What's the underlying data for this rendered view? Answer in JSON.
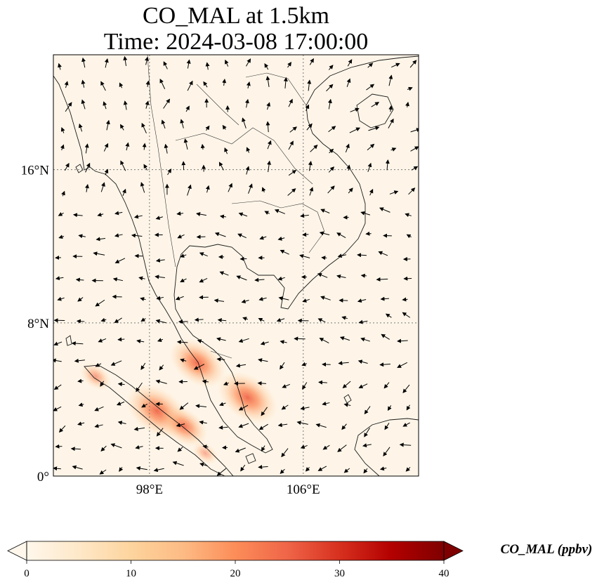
{
  "title": {
    "line1": "CO_MAL at 1.5km",
    "line2": "Time: 2024-03-08 17:00:00"
  },
  "map": {
    "extent": {
      "lon_min": 93,
      "lon_max": 112,
      "lat_min": 0,
      "lat_max": 22
    },
    "lon_ticks": [
      {
        "value": 98,
        "label": "98°E"
      },
      {
        "value": 106,
        "label": "106°E"
      }
    ],
    "lat_ticks": [
      {
        "value": 16,
        "label": "16°N"
      },
      {
        "value": 8,
        "label": "8°N"
      },
      {
        "value": 0,
        "label": "0°"
      }
    ],
    "gridlines": true,
    "background_color": "#fef5e8",
    "hotspots": [
      {
        "lon": 100.5,
        "lat": 5.9,
        "value": 22
      },
      {
        "lon": 103.1,
        "lat": 4.1,
        "value": 24
      },
      {
        "lon": 98.4,
        "lat": 3.4,
        "value": 25
      },
      {
        "lon": 99.8,
        "lat": 2.6,
        "value": 17
      },
      {
        "lon": 95.2,
        "lat": 5.2,
        "value": 9
      },
      {
        "lon": 100.9,
        "lat": 1.2,
        "value": 6
      }
    ]
  },
  "colorbar": {
    "label": "CO_MAL (ppbv)",
    "min": 0,
    "max": 40,
    "ticks": [
      "0",
      "10",
      "20",
      "30",
      "40"
    ],
    "colormap": "OrRd",
    "stops": [
      "#fff7ec",
      "#fee8c8",
      "#fdd49e",
      "#fdbb84",
      "#fc8d59",
      "#ef6548",
      "#d7301f",
      "#b30000",
      "#7f0000"
    ],
    "extend": "both"
  },
  "wind": {
    "field": "quiver",
    "color": "#000000"
  }
}
